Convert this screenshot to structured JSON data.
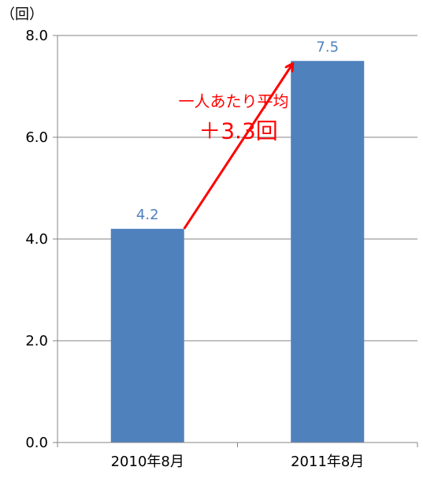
{
  "chart_data": {
    "type": "bar",
    "unit_label": "（回）",
    "categories": [
      "2010年8月",
      "2011年8月"
    ],
    "values": [
      4.2,
      7.5
    ],
    "data_labels": [
      "4.2",
      "7.5"
    ],
    "ylim": [
      0,
      8
    ],
    "yticks": [
      0,
      2,
      4,
      6,
      8
    ],
    "ytick_labels": [
      "0.0",
      "2.0",
      "4.0",
      "6.0",
      "8.0"
    ],
    "grid": true,
    "bar_color": "#4F81BD",
    "label_color": "#4F81BD",
    "annotation": {
      "line1": "一人あたり平均",
      "line2": "＋3.3回",
      "color": "#FF0000",
      "arrow_from_category": 0,
      "arrow_to_category": 1
    }
  }
}
